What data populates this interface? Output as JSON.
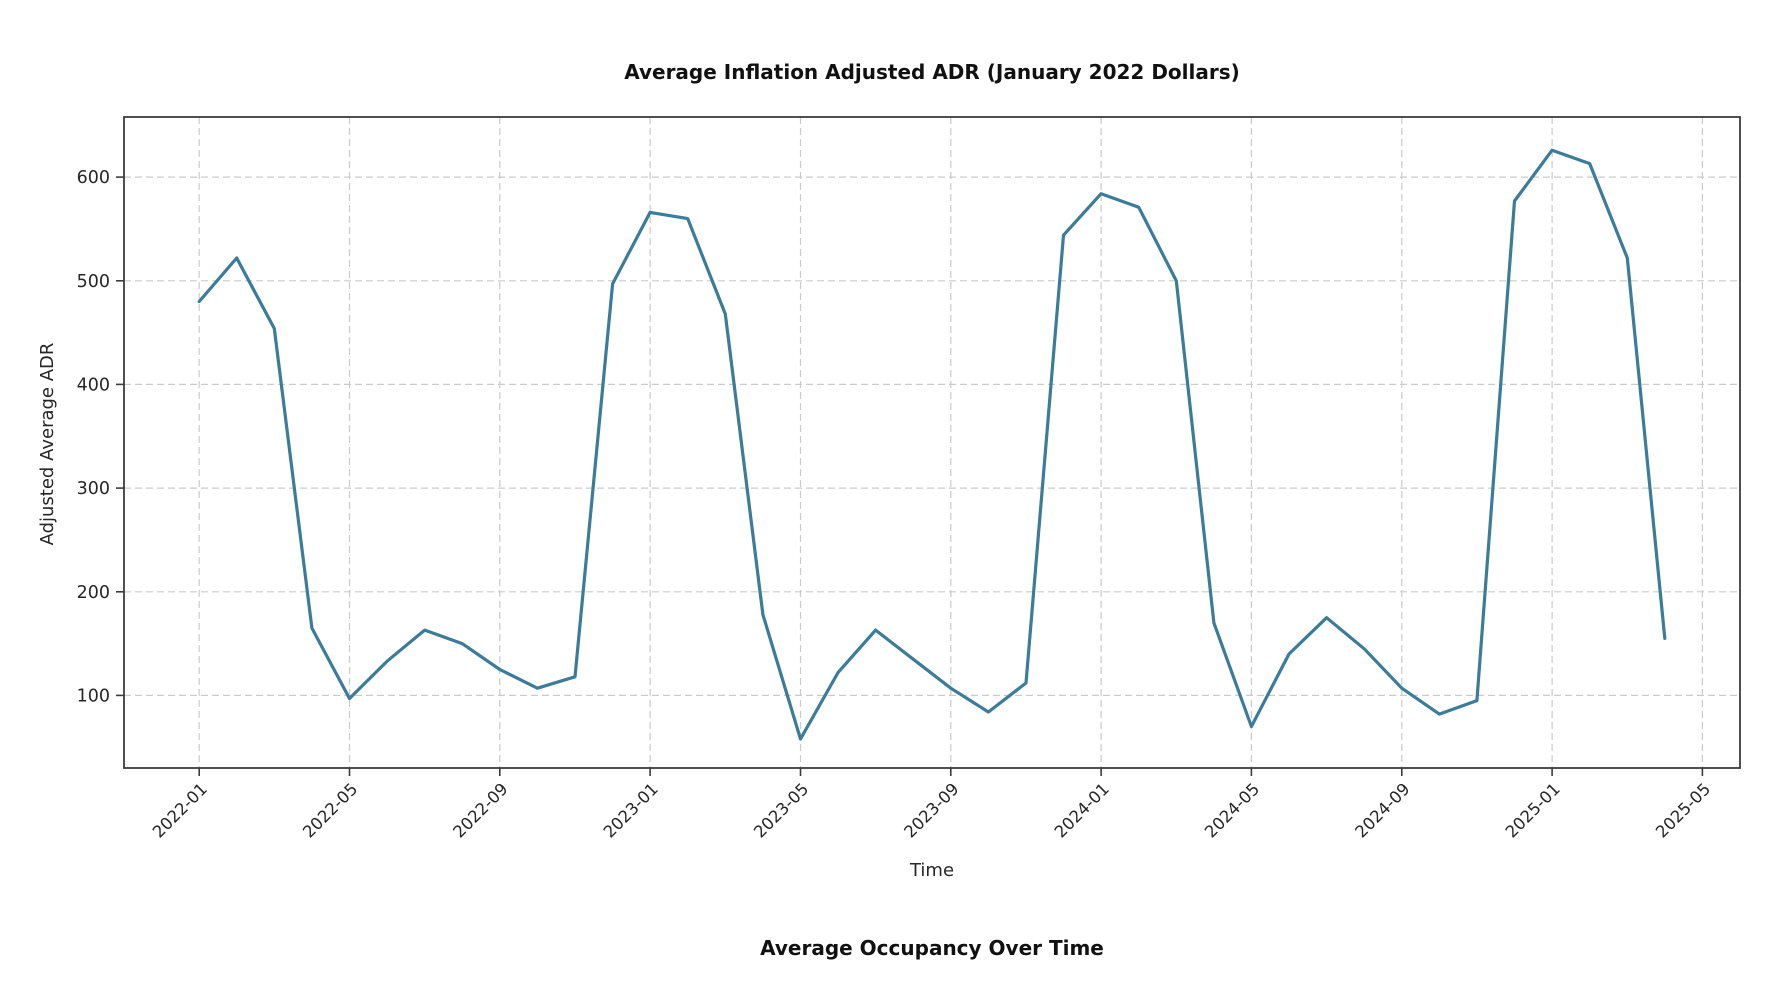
{
  "page": {
    "background": "#ffffff"
  },
  "chart_data": {
    "type": "line",
    "title": "Average Inflation Adjusted ADR (January 2022 Dollars)",
    "xlabel": "Time",
    "ylabel": "Adjusted Average ADR",
    "x": [
      "2022-01",
      "2022-02",
      "2022-03",
      "2022-04",
      "2022-05",
      "2022-06",
      "2022-07",
      "2022-08",
      "2022-09",
      "2022-10",
      "2022-11",
      "2022-12",
      "2023-01",
      "2023-02",
      "2023-03",
      "2023-04",
      "2023-05",
      "2023-06",
      "2023-07",
      "2023-08",
      "2023-09",
      "2023-10",
      "2023-11",
      "2023-12",
      "2024-01",
      "2024-02",
      "2024-03",
      "2024-04",
      "2024-05",
      "2024-06",
      "2024-07",
      "2024-08",
      "2024-09",
      "2024-10",
      "2024-11",
      "2024-12",
      "2025-01",
      "2025-02",
      "2025-03",
      "2025-04"
    ],
    "values": [
      480,
      522,
      454,
      165,
      97,
      133,
      163,
      150,
      125,
      107,
      118,
      497,
      566,
      560,
      468,
      178,
      58,
      122,
      163,
      135,
      107,
      84,
      112,
      544,
      584,
      571,
      500,
      170,
      70,
      140,
      175,
      145,
      107,
      82,
      95,
      577,
      626,
      613,
      522,
      155
    ],
    "x_tick_labels": [
      "2022-01",
      "2022-05",
      "2022-09",
      "2023-01",
      "2023-05",
      "2023-09",
      "2024-01",
      "2024-05",
      "2024-09",
      "2025-01",
      "2025-05"
    ],
    "y_ticks": [
      100,
      200,
      300,
      400,
      500,
      600
    ],
    "xlim_months_from_2022_01": [
      -2,
      41
    ],
    "ylim": [
      30,
      658
    ],
    "grid": true,
    "grid_style": "dashed",
    "legend_position": "none",
    "line_color": "#3a7c99",
    "grid_color": "#cbcbcb",
    "spine_color": "#3c3c3c",
    "tick_text_color": "#262626",
    "line_width": 3.2
  },
  "next_chart": {
    "title": "Average Occupancy Over Time"
  }
}
